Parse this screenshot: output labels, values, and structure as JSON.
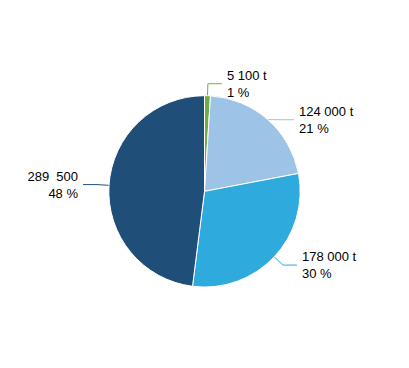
{
  "chart_data": {
    "type": "pie",
    "categories": [
      "5 100 t",
      "124 000 t",
      "178 000 t",
      "289  500"
    ],
    "values": [
      1,
      21,
      30,
      48
    ],
    "value_labels": [
      "1 %",
      "21 %",
      "30 %",
      "48 %"
    ],
    "colors": [
      "#70ad47",
      "#9dc3e6",
      "#2eaadc",
      "#1f4e79"
    ],
    "data_labels": true
  }
}
